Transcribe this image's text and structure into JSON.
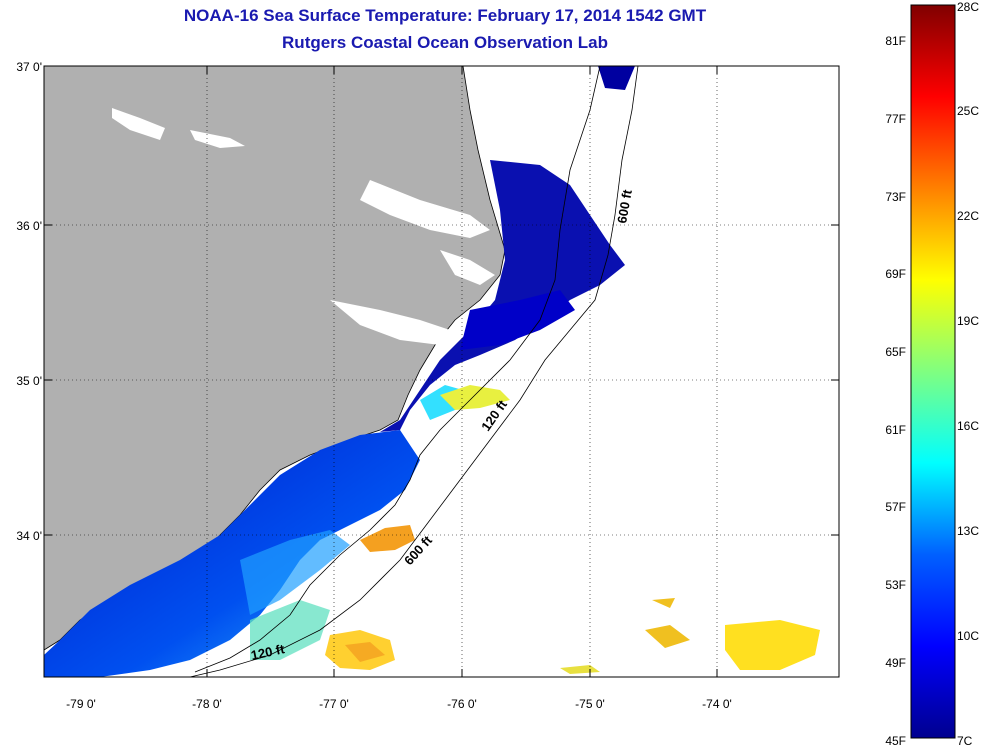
{
  "header": {
    "title": "NOAA-16 Sea Surface Temperature:  February 17, 2014 1542 GMT",
    "subtitle": "Rutgers Coastal Ocean Observation Lab"
  },
  "map": {
    "lat_labels": [
      "37 0'",
      "36 0'",
      "35 0'",
      "34 0'"
    ],
    "lon_labels": [
      "-79 0'",
      "-78 0'",
      "-77 0'",
      "-76 0'",
      "-75 0'",
      "-74 0'"
    ],
    "contour_labels": [
      "600 ft",
      "120 ft",
      "600 ft",
      "120 ft"
    ],
    "colors": {
      "land": "#b0b0b0",
      "no_data": "#ffffff"
    }
  },
  "colorbar": {
    "fahrenheit_labels": [
      "81F",
      "77F",
      "73F",
      "69F",
      "65F",
      "61F",
      "57F",
      "53F",
      "49F",
      "45F"
    ],
    "celsius_labels": [
      "28C",
      "25C",
      "22C",
      "19C",
      "16C",
      "13C",
      "10C",
      "7C"
    ],
    "colors": [
      "#00008f",
      "#0000ff",
      "#0080ff",
      "#00ffff",
      "#80ff80",
      "#ffff00",
      "#ff8000",
      "#ff0000",
      "#800000"
    ]
  }
}
